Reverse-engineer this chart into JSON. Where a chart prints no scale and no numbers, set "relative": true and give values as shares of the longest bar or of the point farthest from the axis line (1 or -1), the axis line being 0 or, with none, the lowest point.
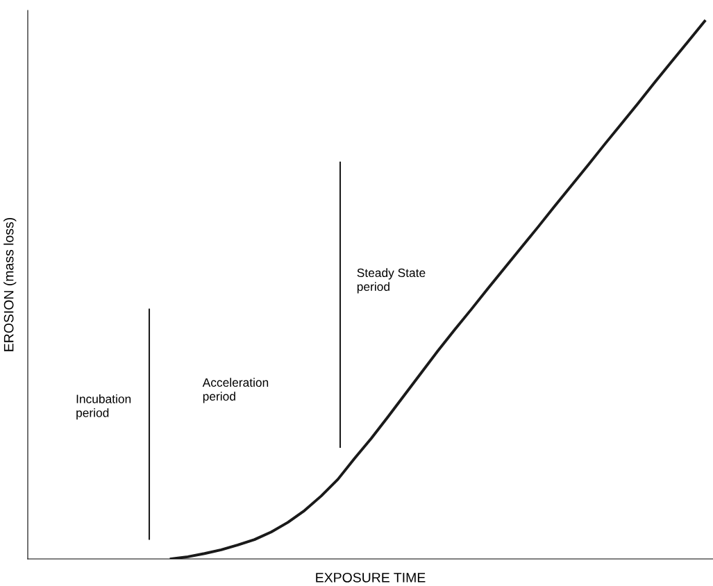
{
  "chart_data": {
    "type": "line",
    "relative": true,
    "xlabel": "EXPOSURE TIME",
    "ylabel": "EROSION (mass loss)",
    "categories": [
      null,
      null,
      null,
      null,
      null,
      null,
      null,
      null,
      null,
      null,
      null,
      null,
      null,
      null,
      null,
      null,
      null,
      null,
      null,
      null,
      null,
      null,
      null,
      null,
      null,
      null,
      null,
      null,
      null,
      null,
      null,
      null,
      null,
      null,
      null,
      null,
      null,
      null,
      null,
      null
    ],
    "series": [
      {
        "color": "#1a1a1a",
        "values": [
          null,
          null,
          null,
          null,
          null,
          null,
          null,
          0,
          0.004,
          0.01,
          0.017,
          0.026,
          0.036,
          0.05,
          0.068,
          0.09,
          0.117,
          0.148,
          0.187,
          0.224,
          0.264,
          0.305,
          0.346,
          0.387,
          0.426,
          0.464,
          0.503,
          0.541,
          0.579,
          0.617,
          0.656,
          0.694,
          0.732,
          0.771,
          0.809,
          0.847,
          0.886,
          0.924,
          0.962,
          1.0
        ]
      }
    ],
    "annotations": [
      "Incubation\nperiod",
      "Acceleration\nperiod",
      "Steady State\nperiod"
    ],
    "legend": false,
    "marker": "none",
    "line_style": "solid"
  }
}
